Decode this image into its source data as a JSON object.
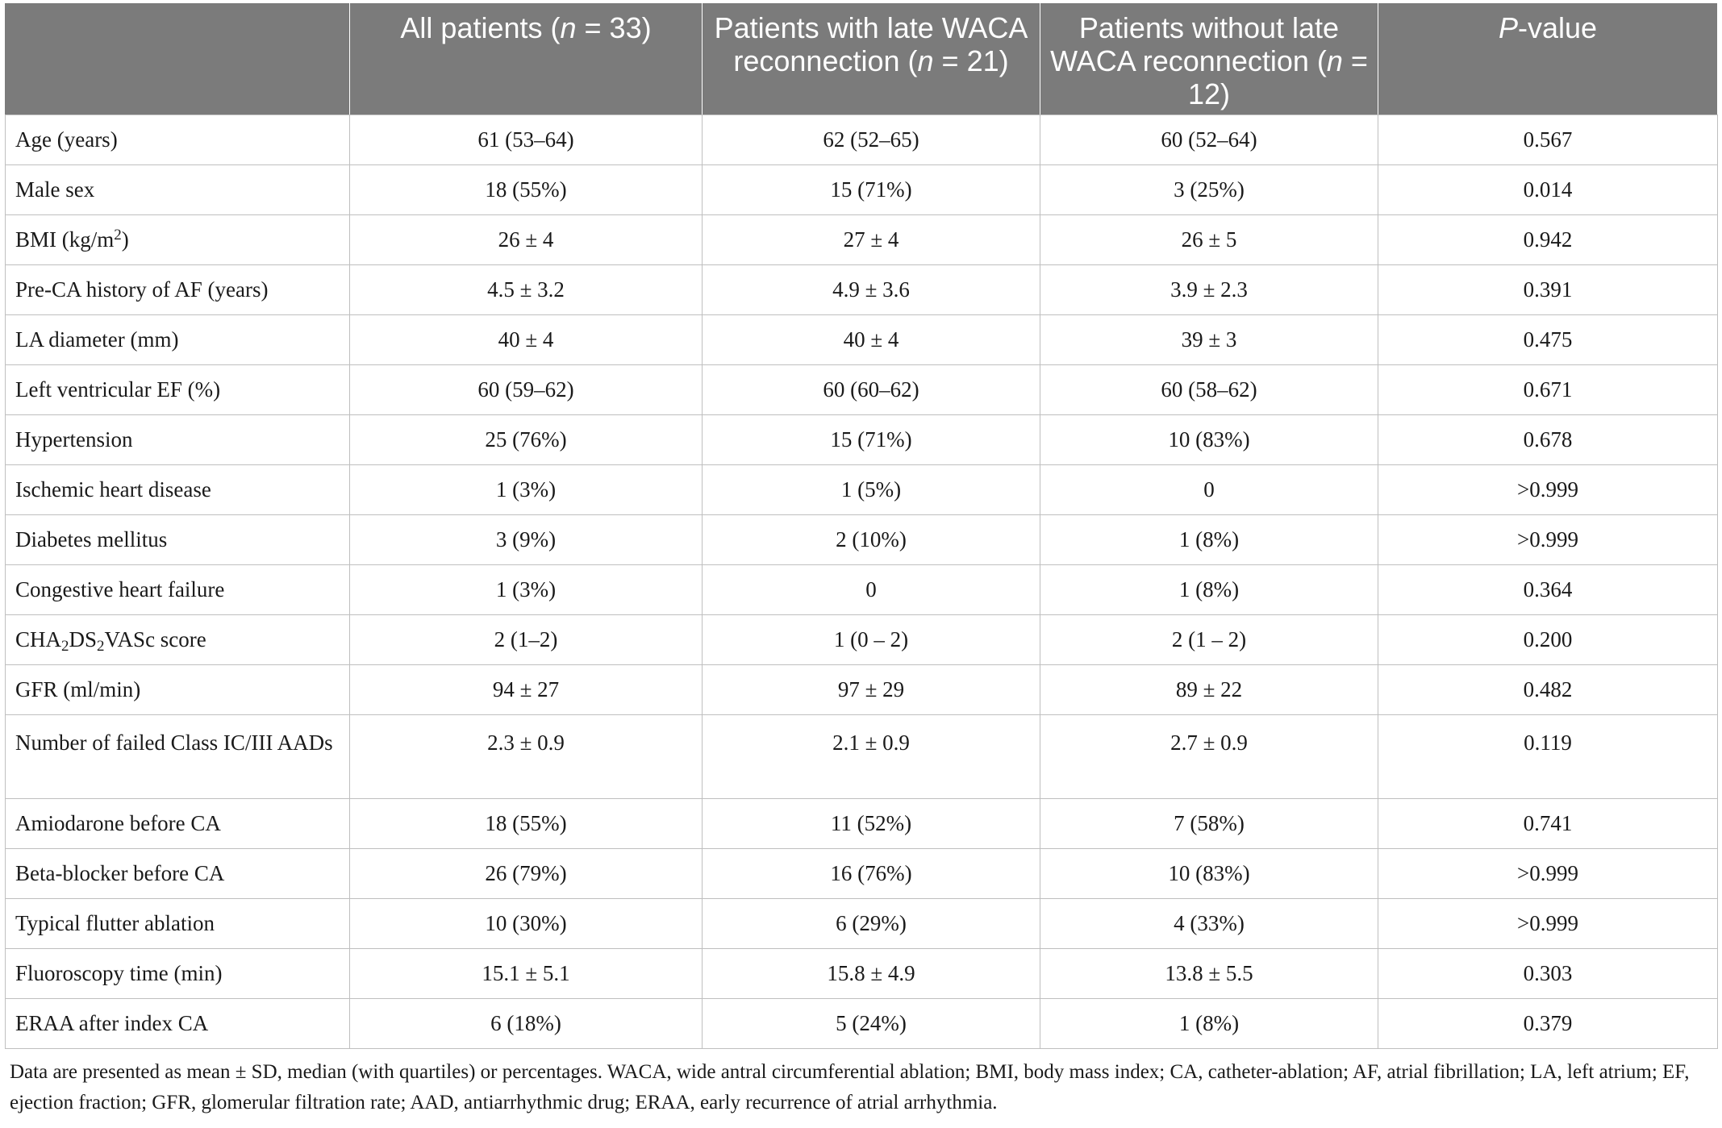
{
  "table": {
    "headers": [
      {
        "pre": "",
        "italic": "",
        "post": ""
      },
      {
        "pre": "All patients (",
        "italic": "n",
        "post": " = 33)"
      },
      {
        "pre": "Patients with late WACA reconnection (",
        "italic": "n",
        "post": " = 21)"
      },
      {
        "pre": "Patients without late WACA reconnection (",
        "italic": "n",
        "post": " = 12)"
      },
      {
        "pre": "",
        "italic": "P",
        "post": "-value"
      }
    ],
    "rows": [
      {
        "label": "Age (years)",
        "cells": [
          "61 (53–64)",
          "62 (52–65)",
          "60 (52–64)",
          "0.567"
        ]
      },
      {
        "label": "Male sex",
        "cells": [
          "18 (55%)",
          "15 (71%)",
          "3 (25%)",
          "0.014"
        ]
      },
      {
        "label_pre": "BMI (kg/m",
        "label_sup": "2",
        "label_post": ")",
        "cells": [
          "26 ± 4",
          "27 ± 4",
          "26 ± 5",
          "0.942"
        ]
      },
      {
        "label": "Pre-CA history of AF (years)",
        "cells": [
          "4.5 ± 3.2",
          "4.9 ± 3.6",
          "3.9 ± 2.3",
          "0.391"
        ]
      },
      {
        "label": "LA diameter (mm)",
        "cells": [
          "40 ± 4",
          "40 ± 4",
          "39 ± 3",
          "0.475"
        ]
      },
      {
        "label": "Left ventricular EF (%)",
        "cells": [
          "60 (59–62)",
          "60 (60–62)",
          "60 (58–62)",
          "0.671"
        ]
      },
      {
        "label": "Hypertension",
        "cells": [
          "25 (76%)",
          "15 (71%)",
          "10 (83%)",
          "0.678"
        ]
      },
      {
        "label": "Ischemic heart disease",
        "cells": [
          "1 (3%)",
          "1 (5%)",
          "0",
          ">0.999"
        ]
      },
      {
        "label": "Diabetes mellitus",
        "cells": [
          "3 (9%)",
          "2 (10%)",
          "1 (8%)",
          ">0.999"
        ]
      },
      {
        "label": "Congestive heart failure",
        "cells": [
          "1 (3%)",
          "0",
          "1 (8%)",
          "0.364"
        ]
      },
      {
        "label_a": "CHA",
        "label_s1": "2",
        "label_b": "DS",
        "label_s2": "2",
        "label_c": "VASc score",
        "cells": [
          "2 (1–2)",
          "1 (0 – 2)",
          "2 (1 – 2)",
          "0.200"
        ]
      },
      {
        "label": "GFR (ml/min)",
        "cells": [
          "94 ± 27",
          "97 ± 29",
          "89 ± 22",
          "0.482"
        ]
      },
      {
        "label": "Number of failed Class IC/III AADs",
        "cells": [
          "2.3 ± 0.9",
          "2.1 ± 0.9",
          "2.7 ± 0.9",
          "0.119"
        ]
      },
      {
        "label": "Amiodarone before CA",
        "cells": [
          "18 (55%)",
          "11 (52%)",
          "7 (58%)",
          "0.741"
        ]
      },
      {
        "label": "Beta-blocker before CA",
        "cells": [
          "26 (79%)",
          "16 (76%)",
          "10 (83%)",
          ">0.999"
        ]
      },
      {
        "label": "Typical flutter ablation",
        "cells": [
          "10 (30%)",
          "6 (29%)",
          "4 (33%)",
          ">0.999"
        ]
      },
      {
        "label": "Fluoroscopy time (min)",
        "cells": [
          "15.1 ± 5.1",
          "15.8 ± 4.9",
          "13.8 ± 5.5",
          "0.303"
        ]
      },
      {
        "label": "ERAA after index CA",
        "cells": [
          "6 (18%)",
          "5 (24%)",
          "1 (8%)",
          "0.379"
        ]
      }
    ]
  },
  "footnote": "Data are presented as mean ± SD, median (with quartiles) or percentages. WACA, wide antral circumferential ablation; BMI, body mass index; CA, catheter-ablation; AF, atrial fibrillation; LA, left atrium; EF, ejection fraction; GFR, glomerular filtration rate; AAD, antiarrhythmic drug; ERAA, early recurrence of atrial arrhythmia.",
  "colors": {
    "header_bg": "#7b7b7b",
    "header_text": "#ffffff",
    "border": "#bfbfbf"
  }
}
